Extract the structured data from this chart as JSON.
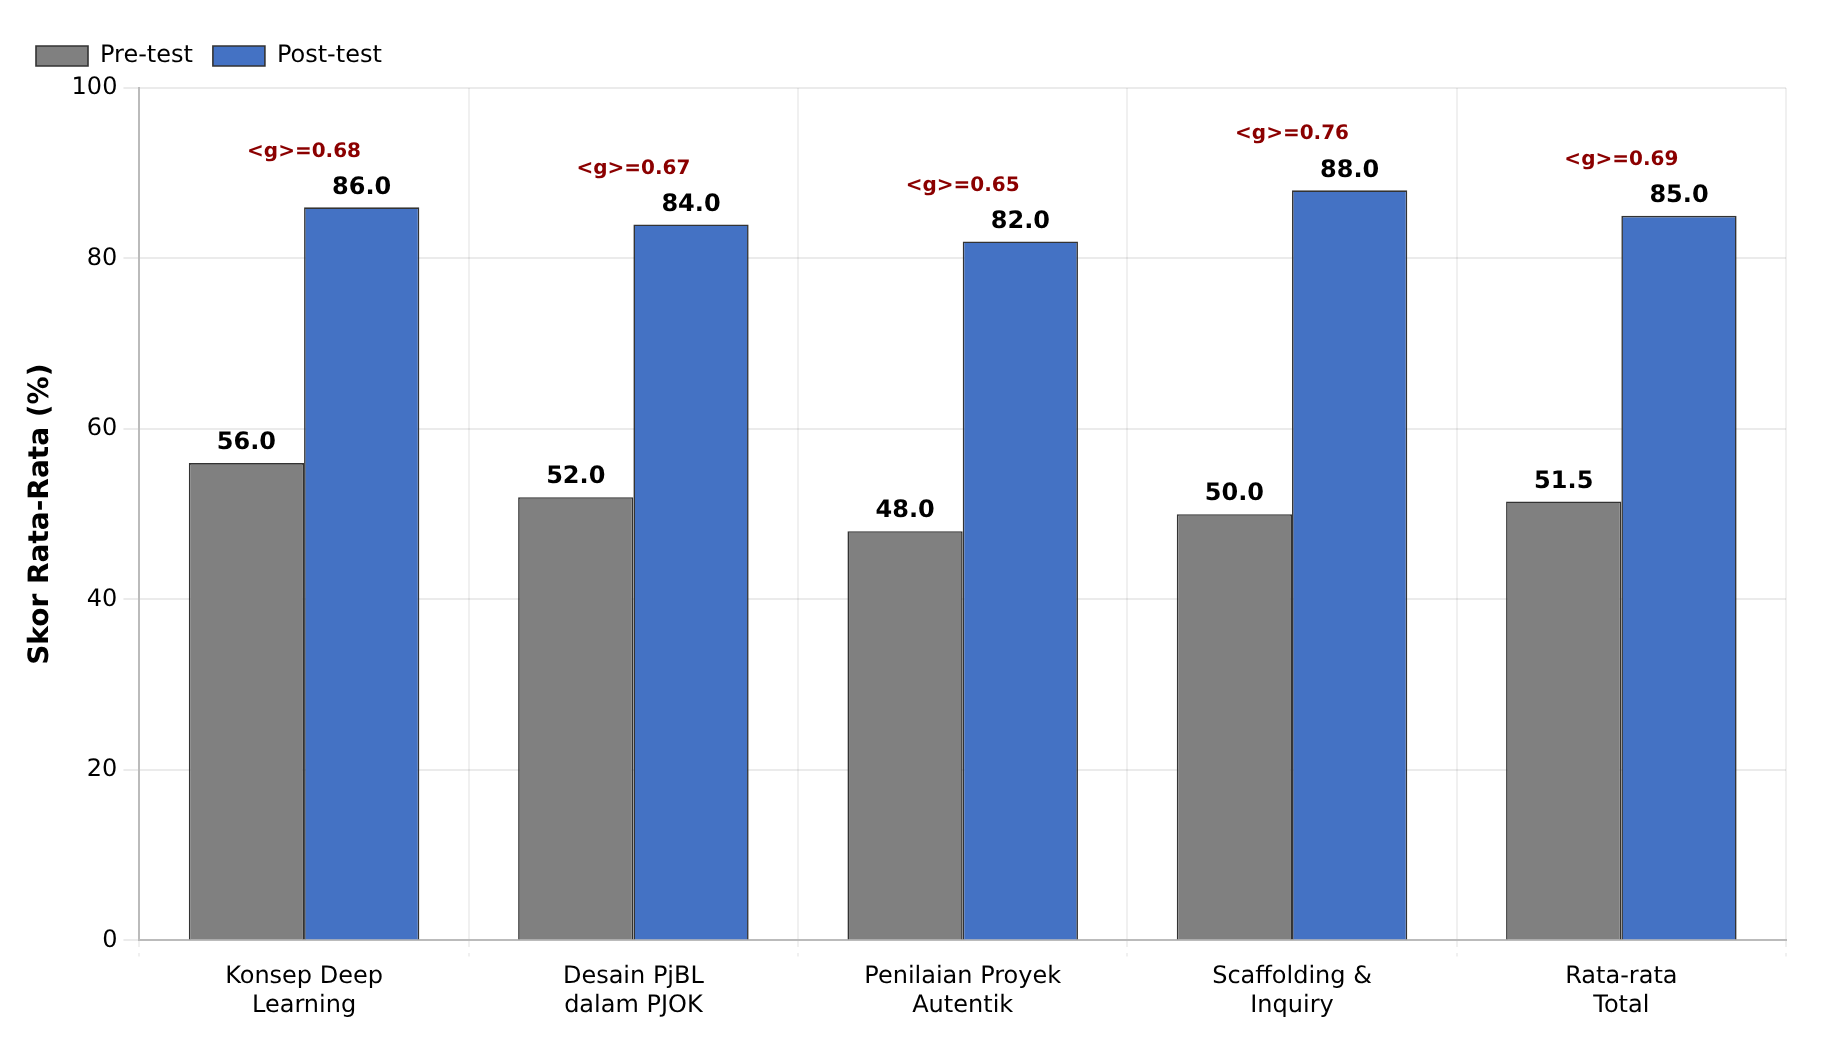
{
  "chart_data": {
    "type": "bar",
    "ylabel": "Skor Rata-Rata (%)",
    "categories": [
      "Konsep Deep\nLearning",
      "Desain PjBL\ndalam PJOK",
      "Penilaian Proyek\nAutentik",
      "Scaffolding &\nInquiry",
      "Rata-rata\nTotal"
    ],
    "series": [
      {
        "name": "Pre-test",
        "color": "#808080",
        "values": [
          56,
          52,
          48,
          50,
          51.5
        ],
        "value_labels": [
          "56.0",
          "52.0",
          "48.0",
          "50.0",
          "51.5"
        ]
      },
      {
        "name": "Post-test",
        "color": "#4472c4",
        "values": [
          86,
          84,
          82,
          88,
          85
        ],
        "value_labels": [
          "86.0",
          "84.0",
          "82.0",
          "88.0",
          "85.0"
        ]
      }
    ],
    "ylim": [
      0,
      100
    ],
    "yticks": [
      0,
      20,
      40,
      60,
      80,
      100
    ],
    "grid": true,
    "legend": "top left",
    "annotations": [
      "<g>=0.68",
      "<g>=0.67",
      "<g>=0.65",
      "<g>=0.76",
      "<g>=0.69"
    ]
  }
}
